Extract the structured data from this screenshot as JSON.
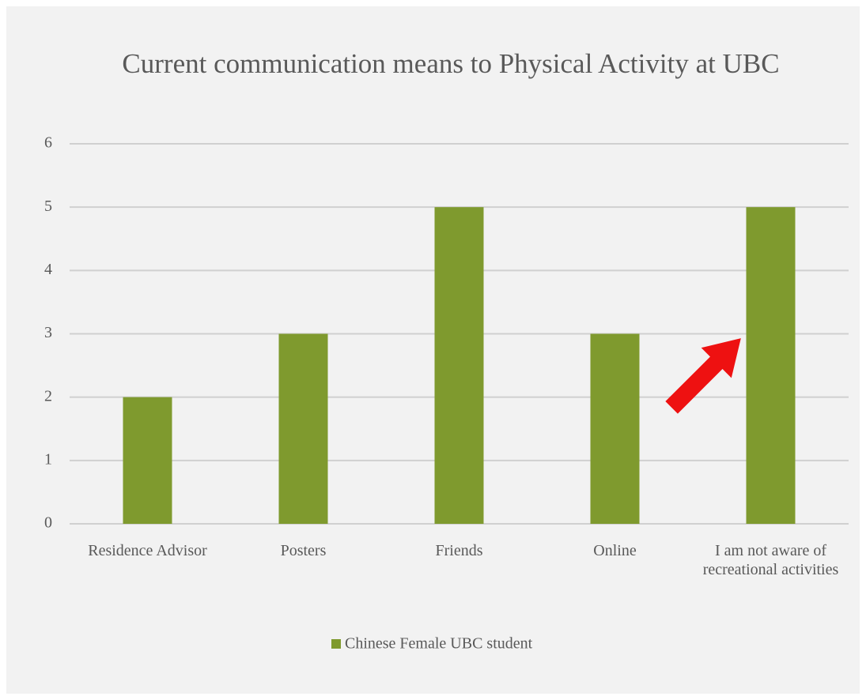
{
  "chart_data": {
    "type": "bar",
    "title": "Current communication means to Physical Activity at UBC",
    "categories": [
      "Residence Advisor",
      "Posters",
      "Friends",
      "Online",
      "I am not aware of recreational activities"
    ],
    "series": [
      {
        "name": "Chinese Female UBC student",
        "color": "#7f9a2e",
        "values": [
          2,
          3,
          5,
          3,
          5
        ]
      }
    ],
    "ylim": [
      0,
      6
    ],
    "yticks": [
      0,
      1,
      2,
      3,
      4,
      5,
      6
    ],
    "grid": true,
    "legend": "bottom"
  }
}
